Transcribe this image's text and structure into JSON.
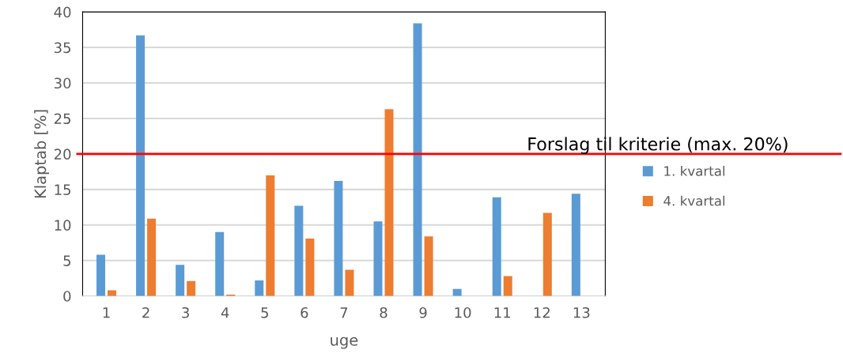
{
  "chart_data": {
    "type": "bar",
    "xlabel": "uge",
    "ylabel": "Klaptab [%]",
    "categories": [
      "1",
      "2",
      "3",
      "4",
      "5",
      "6",
      "7",
      "8",
      "9",
      "10",
      "11",
      "12",
      "13"
    ],
    "series": [
      {
        "name": "1. kvartal",
        "color": "#5b9bd5",
        "values": [
          5.8,
          36.7,
          4.4,
          9.0,
          2.2,
          12.7,
          16.2,
          10.5,
          38.4,
          1.0,
          13.9,
          0,
          14.4
        ]
      },
      {
        "name": "4. kvartal",
        "color": "#ed7d31",
        "values": [
          0.8,
          10.9,
          2.1,
          0.2,
          17.0,
          8.1,
          3.7,
          26.3,
          8.4,
          0,
          2.8,
          11.7,
          0
        ]
      }
    ],
    "ylim": [
      0,
      40
    ],
    "yticks": [
      0,
      5,
      10,
      15,
      20,
      25,
      30,
      35,
      40
    ],
    "grid": "y",
    "legend": "right",
    "ref_lines": [
      {
        "axis": "y",
        "value": 20,
        "label": "Forslag til kriterie (max. 20%)",
        "color": "#ff0000"
      }
    ]
  }
}
